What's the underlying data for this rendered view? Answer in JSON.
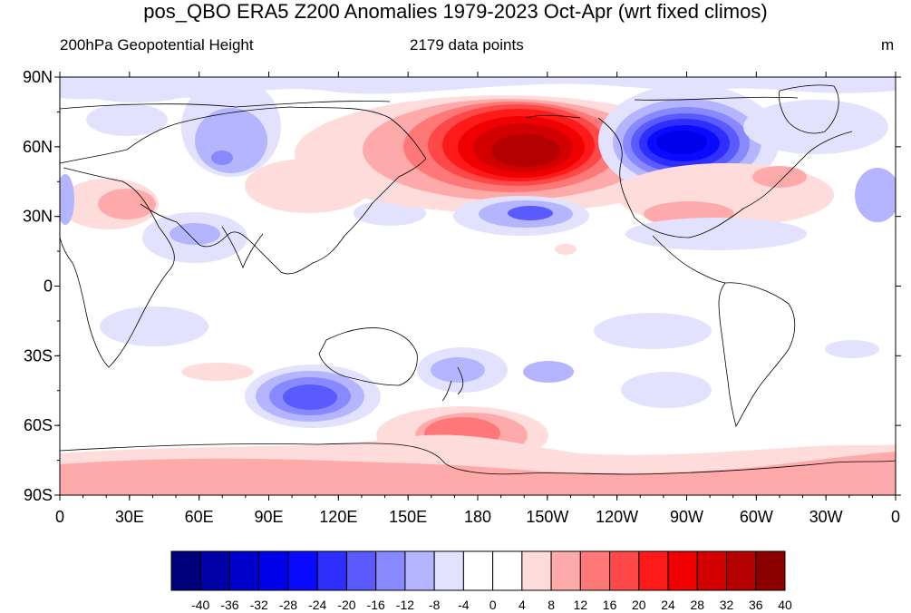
{
  "header": {
    "title": "pos_QBO ERA5 Z200 Anomalies 1979-2023 Oct-Apr (wrt fixed climos)",
    "left_subtitle": "200hPa Geopotential Height",
    "center_subtitle": "2179 data points",
    "units": "m"
  },
  "axes": {
    "lat_labels": [
      "90N",
      "60N",
      "30N",
      "0",
      "30S",
      "60S",
      "90S"
    ],
    "lon_labels": [
      "0",
      "30E",
      "60E",
      "90E",
      "120E",
      "150E",
      "180",
      "150W",
      "120W",
      "90W",
      "60W",
      "30W",
      "0"
    ]
  },
  "colorbar": {
    "labels": [
      "-40",
      "-36",
      "-32",
      "-28",
      "-24",
      "-20",
      "-16",
      "-12",
      "-8",
      "-4",
      "0",
      "4",
      "8",
      "12",
      "16",
      "20",
      "24",
      "28",
      "32",
      "36",
      "40"
    ],
    "colors": [
      "#00007a",
      "#0000a6",
      "#0000cc",
      "#0000ea",
      "#0a0aff",
      "#2e2eff",
      "#5a5aff",
      "#8888ff",
      "#b4b4ff",
      "#e2e2ff",
      "#ffffff",
      "#ffffff",
      "#ffdcdc",
      "#ffaaaa",
      "#ff7878",
      "#ff4848",
      "#ff1a1a",
      "#f00000",
      "#d20000",
      "#b40000",
      "#8c0000"
    ]
  },
  "anomaly_centers": [
    {
      "name": "north-pacific-high",
      "sign": "positive",
      "peak": 40
    },
    {
      "name": "canada-low",
      "sign": "negative",
      "peak": -28
    },
    {
      "name": "subtropical-pacific-low",
      "sign": "negative",
      "peak": -20
    },
    {
      "name": "southern-indian-ocean-low",
      "sign": "negative",
      "peak": -20
    },
    {
      "name": "southern-ocean-high",
      "sign": "positive",
      "peak": 16
    },
    {
      "name": "antarctic-ring-high",
      "sign": "positive",
      "peak": 12
    }
  ]
}
